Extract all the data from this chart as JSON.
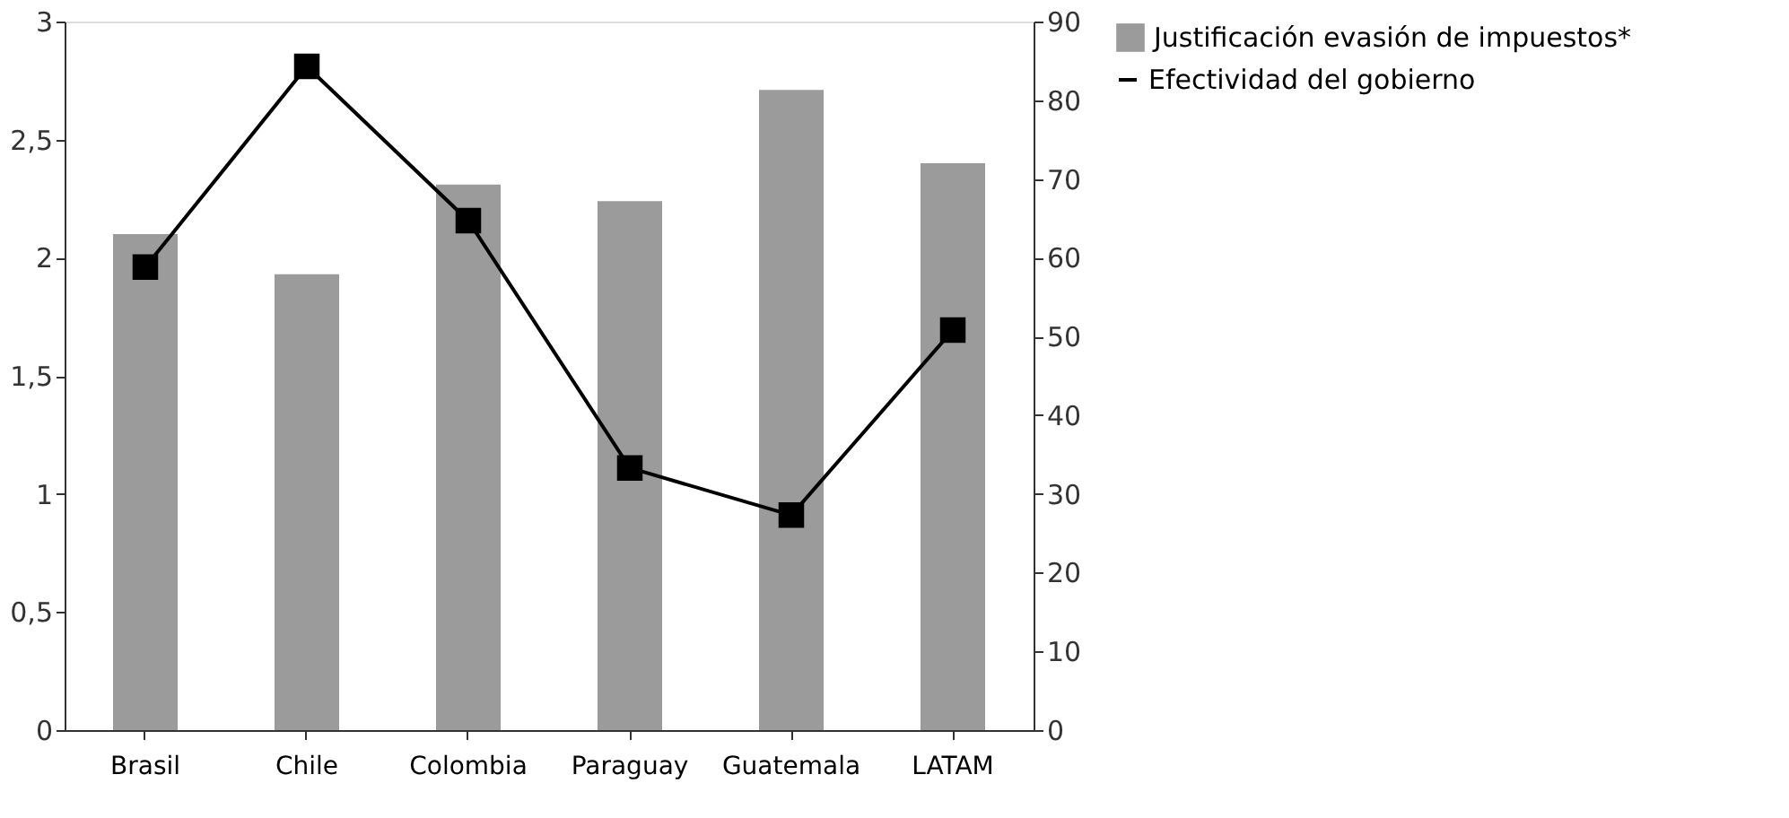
{
  "chart_data": {
    "type": "bar",
    "categories": [
      "Brasil",
      "Chile",
      "Colombia",
      "Paraguay",
      "Guatemala",
      "LATAM"
    ],
    "series": [
      {
        "name": "Justificación evasión de impuestos*",
        "color": "#9b9b9b",
        "values": [
          2.1,
          1.93,
          2.31,
          2.24,
          2.71,
          2.4
        ]
      },
      {
        "name": "Efectividad del gobierno",
        "type": "line",
        "axis": "y2",
        "color": "#000000",
        "values": [
          58.8,
          84.3,
          64.7,
          33.3,
          27.3,
          50.8
        ]
      }
    ],
    "ylim": [
      0,
      3
    ],
    "yticks": [
      0,
      {
        "value": 0.5,
        "label": "0,5"
      },
      1,
      {
        "value": 1.5,
        "label": "1,5"
      },
      2,
      {
        "value": 2.5,
        "label": "2,5"
      },
      3
    ],
    "y2lim": [
      0,
      90
    ],
    "y2ticks": [
      0,
      10,
      20,
      30,
      40,
      50,
      60,
      70,
      80,
      90
    ],
    "marker": "square",
    "legend": "right",
    "grid": false
  }
}
